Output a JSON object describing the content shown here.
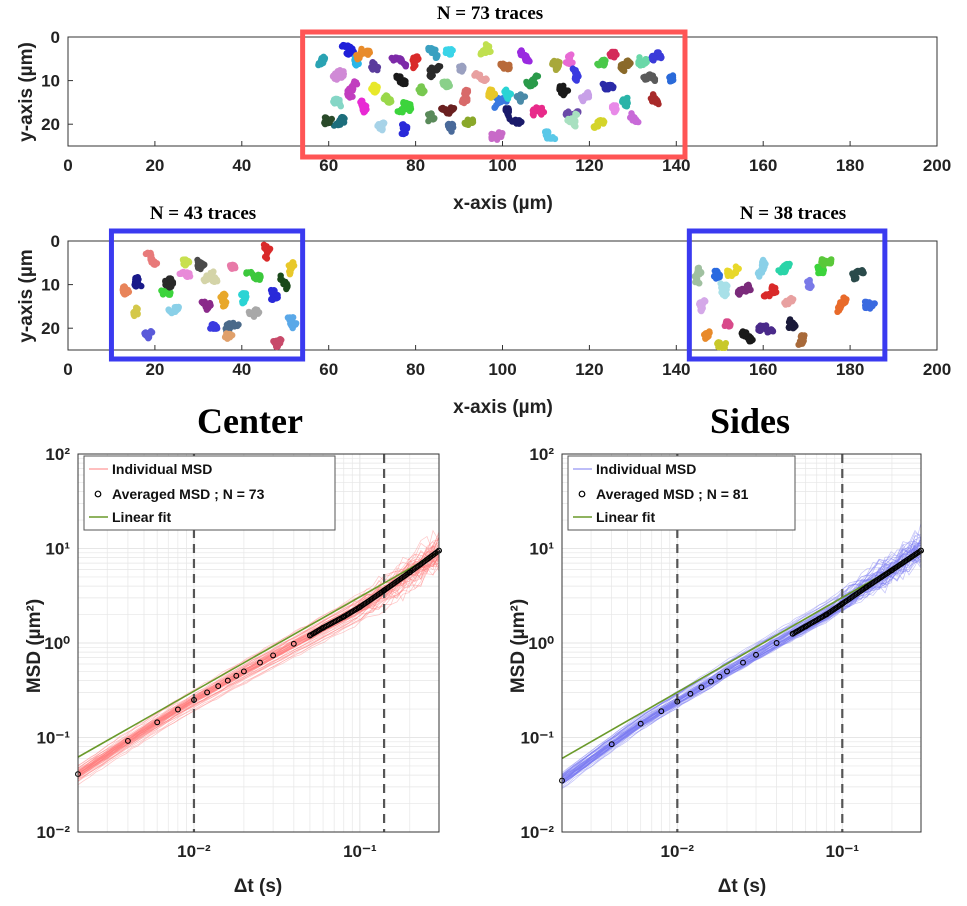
{
  "colors": {
    "center_box": "#ff5555",
    "sides_box": "#3a3af0",
    "center_msd": "#ff7f7f",
    "sides_msd": "#7b7bf2",
    "avg_marker": "#000000",
    "fit": "#6a9a2a",
    "vline": "#555555",
    "grid": "#e6e6e6"
  },
  "chart_data": [
    {
      "id": "traces_center",
      "type": "scatter",
      "title": "N = 73 traces",
      "xlabel": "x-axis (µm)",
      "ylabel": "y-axis (µm)",
      "xlim": [
        0,
        200
      ],
      "ylim": [
        25,
        0
      ],
      "xticks": [
        0,
        20,
        40,
        60,
        80,
        100,
        120,
        140,
        160,
        180,
        200
      ],
      "yticks": [
        0,
        10,
        20
      ],
      "region": {
        "x": [
          54,
          142
        ],
        "label": "N = 73 traces"
      },
      "clusters": [
        {
          "x": 58,
          "y": 5,
          "c": "#2aa3b3"
        },
        {
          "x": 61,
          "y": 9,
          "c": "#d08ad6"
        },
        {
          "x": 62,
          "y": 14,
          "c": "#85d6c6"
        },
        {
          "x": 64,
          "y": 4,
          "c": "#1f1fd9"
        },
        {
          "x": 66,
          "y": 6,
          "c": "#29b6e8"
        },
        {
          "x": 63,
          "y": 20,
          "c": "#1d6e7c"
        },
        {
          "x": 67,
          "y": 11,
          "c": "#c13dbf"
        },
        {
          "x": 69,
          "y": 4,
          "c": "#e88b2a"
        },
        {
          "x": 70,
          "y": 7,
          "c": "#5a3c9c"
        },
        {
          "x": 71,
          "y": 13,
          "c": "#e8e82a"
        },
        {
          "x": 72,
          "y": 20,
          "c": "#a7d3e8"
        },
        {
          "x": 74,
          "y": 5,
          "c": "#7d2aa8"
        },
        {
          "x": 76,
          "y": 9,
          "c": "#1a1a1a"
        },
        {
          "x": 77,
          "y": 15,
          "c": "#3cd43c"
        },
        {
          "x": 78,
          "y": 21,
          "c": "#2a2ad9"
        },
        {
          "x": 80,
          "y": 6,
          "c": "#d92a2a"
        },
        {
          "x": 81,
          "y": 12,
          "c": "#78c850"
        },
        {
          "x": 83,
          "y": 18,
          "c": "#5a8a5a"
        },
        {
          "x": 85,
          "y": 5,
          "c": "#3aa0c0"
        },
        {
          "x": 86,
          "y": 11,
          "c": "#8ad08a"
        },
        {
          "x": 88,
          "y": 16,
          "c": "#6a2020"
        },
        {
          "x": 89,
          "y": 21,
          "c": "#4a6a9a"
        },
        {
          "x": 91,
          "y": 7,
          "c": "#9aa0c0"
        },
        {
          "x": 92,
          "y": 13,
          "c": "#d86a6a"
        },
        {
          "x": 93,
          "y": 19,
          "c": "#8aa82a"
        },
        {
          "x": 95,
          "y": 4,
          "c": "#c0e050"
        },
        {
          "x": 96,
          "y": 10,
          "c": "#e8a0a0"
        },
        {
          "x": 98,
          "y": 16,
          "c": "#3a7ae0"
        },
        {
          "x": 99,
          "y": 22,
          "c": "#c86ac8"
        },
        {
          "x": 101,
          "y": 7,
          "c": "#b86a3a"
        },
        {
          "x": 102,
          "y": 13,
          "c": "#2ad4d4"
        },
        {
          "x": 104,
          "y": 19,
          "c": "#1a1a6a"
        },
        {
          "x": 106,
          "y": 5,
          "c": "#9a2ae0"
        },
        {
          "x": 107,
          "y": 11,
          "c": "#2a9a4a"
        },
        {
          "x": 109,
          "y": 17,
          "c": "#e82a8a"
        },
        {
          "x": 110,
          "y": 22,
          "c": "#5ac8e8"
        },
        {
          "x": 112,
          "y": 6,
          "c": "#a8a83a"
        },
        {
          "x": 113,
          "y": 12,
          "c": "#1a1a1a"
        },
        {
          "x": 115,
          "y": 18,
          "c": "#6a4aa8"
        },
        {
          "x": 116,
          "y": 4,
          "c": "#e86ad4"
        },
        {
          "x": 118,
          "y": 9,
          "c": "#3a3ae0"
        },
        {
          "x": 119,
          "y": 15,
          "c": "#c8a0e8"
        },
        {
          "x": 121,
          "y": 21,
          "c": "#d4d42a"
        },
        {
          "x": 123,
          "y": 6,
          "c": "#4ac84a"
        },
        {
          "x": 124,
          "y": 12,
          "c": "#2a2aa8"
        },
        {
          "x": 126,
          "y": 17,
          "c": "#e88ae8"
        },
        {
          "x": 128,
          "y": 8,
          "c": "#8a6a2a"
        },
        {
          "x": 129,
          "y": 14,
          "c": "#2ab4a8"
        },
        {
          "x": 131,
          "y": 20,
          "c": "#c86ad8"
        },
        {
          "x": 133,
          "y": 10,
          "c": "#5a5a5a"
        },
        {
          "x": 135,
          "y": 15,
          "c": "#a82a2a"
        },
        {
          "x": 137,
          "y": 5,
          "c": "#3a3ad9"
        },
        {
          "x": 139,
          "y": 9,
          "c": "#2a6ad9"
        },
        {
          "x": 68,
          "y": 17,
          "c": "#e82ad4"
        },
        {
          "x": 74,
          "y": 14,
          "c": "#9ad84a"
        },
        {
          "x": 84,
          "y": 9,
          "c": "#2a2a2a"
        },
        {
          "x": 97,
          "y": 14,
          "c": "#e8c82a"
        },
        {
          "x": 105,
          "y": 14,
          "c": "#4a8aa8"
        },
        {
          "x": 117,
          "y": 20,
          "c": "#a8e0c0"
        },
        {
          "x": 125,
          "y": 4,
          "c": "#d42a5a"
        },
        {
          "x": 132,
          "y": 5,
          "c": "#6ad8a8"
        },
        {
          "x": 60,
          "y": 18,
          "c": "#2a4a2a"
        },
        {
          "x": 87,
          "y": 3,
          "c": "#3ad4e8"
        }
      ]
    },
    {
      "id": "traces_sides",
      "type": "scatter",
      "xlabel": "x-axis (µm)",
      "ylabel": "y-axis (µm",
      "xlim": [
        0,
        200
      ],
      "ylim": [
        25,
        0
      ],
      "xticks": [
        0,
        20,
        40,
        60,
        80,
        100,
        120,
        140,
        160,
        180,
        200
      ],
      "yticks": [
        0,
        10,
        20
      ],
      "regions": [
        {
          "x": [
            10,
            54
          ],
          "label": "N = 43 traces"
        },
        {
          "x": [
            143,
            188
          ],
          "label": "N = 38 traces"
        }
      ],
      "clusters": [
        {
          "x": 13,
          "y": 12,
          "c": "#e8845a"
        },
        {
          "x": 15,
          "y": 17,
          "c": "#d4c84a"
        },
        {
          "x": 18,
          "y": 22,
          "c": "#5a5ad9"
        },
        {
          "x": 17,
          "y": 10,
          "c": "#1a1a8a"
        },
        {
          "x": 21,
          "y": 11,
          "c": "#3cd43c"
        },
        {
          "x": 20,
          "y": 5,
          "c": "#e87a7a"
        },
        {
          "x": 23,
          "y": 16,
          "c": "#8ad0e8"
        },
        {
          "x": 24,
          "y": 10,
          "c": "#2a2a2a"
        },
        {
          "x": 27,
          "y": 4,
          "c": "#c8e050"
        },
        {
          "x": 28,
          "y": 8,
          "c": "#e88ad8"
        },
        {
          "x": 30,
          "y": 6,
          "c": "#4a4a4a"
        },
        {
          "x": 31,
          "y": 14,
          "c": "#8a2a8a"
        },
        {
          "x": 33,
          "y": 9,
          "c": "#d4d4a8"
        },
        {
          "x": 34,
          "y": 20,
          "c": "#3a3ae0"
        },
        {
          "x": 36,
          "y": 15,
          "c": "#e8a82a"
        },
        {
          "x": 38,
          "y": 6,
          "c": "#e87aa8"
        },
        {
          "x": 39,
          "y": 20,
          "c": "#4a6a8a"
        },
        {
          "x": 41,
          "y": 13,
          "c": "#2ad4d4"
        },
        {
          "x": 43,
          "y": 8,
          "c": "#3cc83c"
        },
        {
          "x": 44,
          "y": 17,
          "c": "#a8a8a8"
        },
        {
          "x": 46,
          "y": 4,
          "c": "#d92a2a"
        },
        {
          "x": 47,
          "y": 13,
          "c": "#2a2ad9"
        },
        {
          "x": 48,
          "y": 23,
          "c": "#c84a6a"
        },
        {
          "x": 49,
          "y": 8,
          "c": "#1a4a1a"
        },
        {
          "x": 51,
          "y": 18,
          "c": "#5aa8e8"
        },
        {
          "x": 52,
          "y": 6,
          "c": "#e8c82a"
        },
        {
          "x": 36,
          "y": 22,
          "c": "#e0a06a"
        },
        {
          "x": 145,
          "y": 9,
          "c": "#a0c0a0"
        },
        {
          "x": 146,
          "y": 16,
          "c": "#d4a8e8"
        },
        {
          "x": 147,
          "y": 22,
          "c": "#e88a2a"
        },
        {
          "x": 149,
          "y": 7,
          "c": "#2a6ae0"
        },
        {
          "x": 151,
          "y": 13,
          "c": "#a8e0e8"
        },
        {
          "x": 152,
          "y": 19,
          "c": "#d84a8a"
        },
        {
          "x": 154,
          "y": 6,
          "c": "#e8d82a"
        },
        {
          "x": 155,
          "y": 11,
          "c": "#7a2a7a"
        },
        {
          "x": 157,
          "y": 23,
          "c": "#1a1a1a"
        },
        {
          "x": 159,
          "y": 8,
          "c": "#8ad0e8"
        },
        {
          "x": 160,
          "y": 13,
          "c": "#d92a2a"
        },
        {
          "x": 162,
          "y": 20,
          "c": "#4a2a8a"
        },
        {
          "x": 164,
          "y": 7,
          "c": "#2ad4a8"
        },
        {
          "x": 166,
          "y": 14,
          "c": "#e8a0a0"
        },
        {
          "x": 167,
          "y": 20,
          "c": "#1a1a3a"
        },
        {
          "x": 168,
          "y": 24,
          "c": "#a86a3a"
        },
        {
          "x": 170,
          "y": 10,
          "c": "#7a7ae8"
        },
        {
          "x": 173,
          "y": 7,
          "c": "#3cd43c"
        },
        {
          "x": 175,
          "y": 4,
          "c": "#5ac83a"
        },
        {
          "x": 179,
          "y": 13,
          "c": "#e86a2a"
        },
        {
          "x": 181,
          "y": 8,
          "c": "#2a4a4a"
        },
        {
          "x": 184,
          "y": 14,
          "c": "#3a6ae0"
        },
        {
          "x": 150,
          "y": 24,
          "c": "#c8c82a"
        }
      ]
    },
    {
      "id": "msd_center",
      "type": "line",
      "title": "Center",
      "xlabel": "Δt (s)",
      "ylabel": "MSD (µm²)",
      "xscale": "log",
      "yscale": "log",
      "xlim": [
        0.002,
        0.3
      ],
      "ylim": [
        0.01,
        100
      ],
      "xtick_labels": [
        "10⁻²",
        "10⁻¹"
      ],
      "xtick_values": [
        0.01,
        0.1
      ],
      "ytick_labels": [
        "10⁻²",
        "10⁻¹",
        "10⁰",
        "10¹",
        "10²"
      ],
      "ytick_values": [
        0.01,
        0.1,
        1,
        10,
        100
      ],
      "vlines": [
        0.01,
        0.14
      ],
      "n_traces": 73,
      "averaged": {
        "x": [
          0.002,
          0.004,
          0.006,
          0.008,
          0.01,
          0.012,
          0.014,
          0.016,
          0.018,
          0.02,
          0.025,
          0.03,
          0.04,
          0.05,
          0.06,
          0.08,
          0.1,
          0.14,
          0.2,
          0.3
        ],
        "y": [
          0.041,
          0.092,
          0.145,
          0.198,
          0.25,
          0.3,
          0.35,
          0.4,
          0.45,
          0.5,
          0.62,
          0.74,
          0.98,
          1.2,
          1.45,
          1.9,
          2.4,
          3.6,
          5.6,
          9.5
        ]
      },
      "fit": {
        "x": [
          0.002,
          0.3
        ],
        "y": [
          0.062,
          9.2
        ]
      },
      "legend": [
        "Individual MSD",
        "Averaged MSD ; N = 73",
        "Linear fit"
      ]
    },
    {
      "id": "msd_sides",
      "type": "line",
      "title": "Sides",
      "xlabel": "Δt (s)",
      "ylabel": "MSD (µm²)",
      "xscale": "log",
      "yscale": "log",
      "xlim": [
        0.002,
        0.3
      ],
      "ylim": [
        0.01,
        100
      ],
      "xtick_labels": [
        "10⁻²",
        "10⁻¹"
      ],
      "xtick_values": [
        0.01,
        0.1
      ],
      "ytick_labels": [
        "10⁻²",
        "10⁻¹",
        "10⁰",
        "10¹",
        "10²"
      ],
      "ytick_values": [
        0.01,
        0.1,
        1,
        10,
        100
      ],
      "vlines": [
        0.01,
        0.1
      ],
      "n_traces": 81,
      "averaged": {
        "x": [
          0.002,
          0.004,
          0.006,
          0.008,
          0.01,
          0.012,
          0.014,
          0.016,
          0.018,
          0.02,
          0.025,
          0.03,
          0.04,
          0.05,
          0.06,
          0.08,
          0.1,
          0.14,
          0.2,
          0.3
        ],
        "y": [
          0.035,
          0.085,
          0.14,
          0.19,
          0.24,
          0.29,
          0.34,
          0.39,
          0.44,
          0.5,
          0.62,
          0.75,
          1.0,
          1.25,
          1.5,
          2.0,
          2.6,
          3.9,
          5.9,
          9.5
        ]
      },
      "fit": {
        "x": [
          0.002,
          0.3
        ],
        "y": [
          0.06,
          9.1
        ]
      },
      "legend": [
        "Individual MSD",
        "Averaged MSD ; N = 81",
        "Linear fit"
      ]
    }
  ]
}
